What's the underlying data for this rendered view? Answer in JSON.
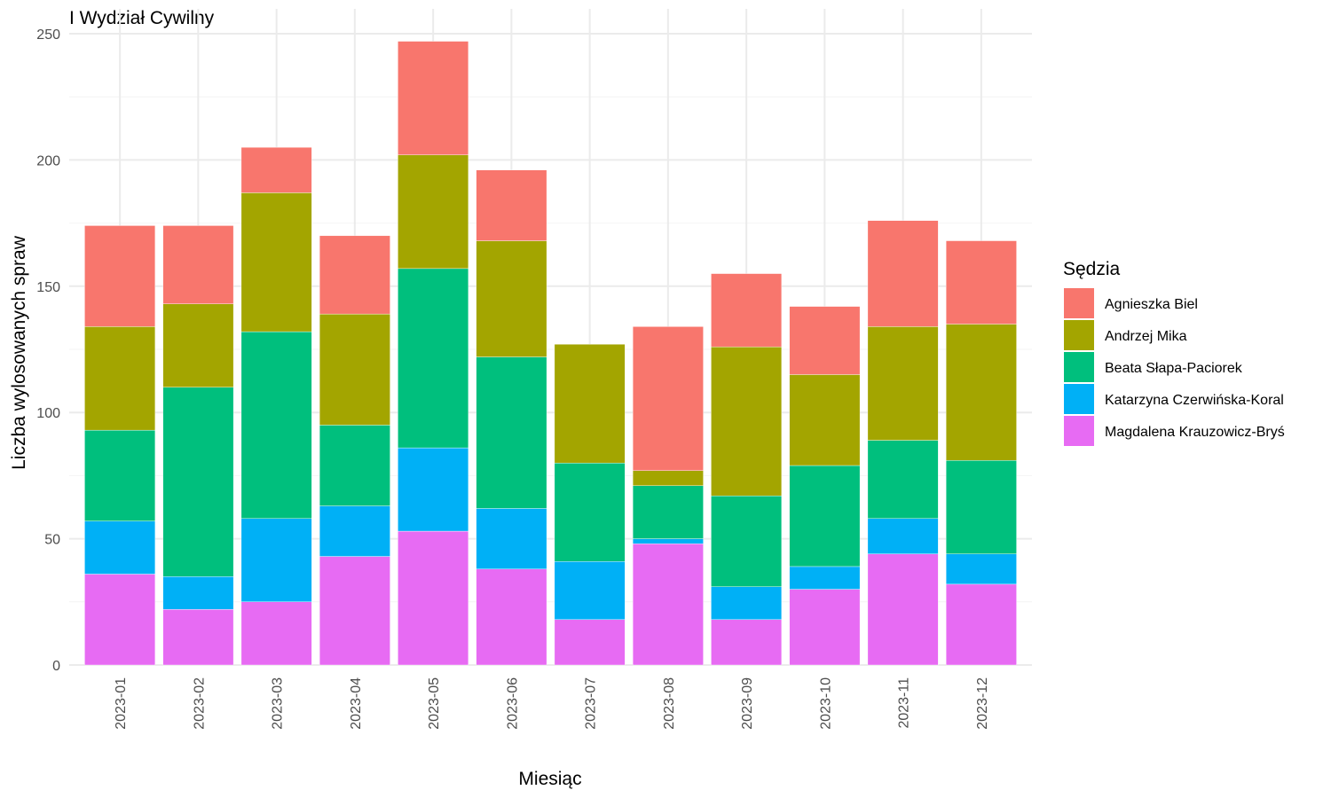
{
  "chart_data": {
    "type": "bar",
    "stacked": true,
    "title": "I Wydział Cywilny",
    "xlabel": "Miesiąc",
    "ylabel": "Liczba wylosowanych spraw",
    "ylim": [
      0,
      260
    ],
    "yticks": [
      0,
      50,
      100,
      150,
      200,
      250
    ],
    "grid": true,
    "legend": {
      "title": "Sędzia",
      "position": "right"
    },
    "categories": [
      "2023-01",
      "2023-02",
      "2023-03",
      "2023-04",
      "2023-05",
      "2023-06",
      "2023-07",
      "2023-08",
      "2023-09",
      "2023-10",
      "2023-11",
      "2023-12"
    ],
    "series": [
      {
        "name": "Magdalena Krauzowicz-Bryś",
        "color": "#E76BF3",
        "values": [
          36,
          22,
          25,
          43,
          53,
          38,
          18,
          48,
          18,
          30,
          44,
          32
        ]
      },
      {
        "name": "Katarzyna Czerwińska-Koral",
        "color": "#00B0F6",
        "values": [
          21,
          13,
          33,
          20,
          33,
          24,
          23,
          2,
          13,
          9,
          14,
          12
        ]
      },
      {
        "name": "Beata Słapa-Paciorek",
        "color": "#00BF7D",
        "values": [
          36,
          75,
          74,
          32,
          71,
          60,
          39,
          21,
          36,
          40,
          31,
          37
        ]
      },
      {
        "name": "Andrzej Mika",
        "color": "#A3A500",
        "values": [
          41,
          33,
          55,
          44,
          45,
          46,
          47,
          6,
          59,
          36,
          45,
          54
        ]
      },
      {
        "name": "Agnieszka Biel",
        "color": "#F8766D",
        "values": [
          40,
          31,
          18,
          31,
          45,
          28,
          0,
          57,
          29,
          27,
          42,
          33
        ]
      }
    ],
    "legend_order": [
      "Agnieszka Biel",
      "Andrzej Mika",
      "Beata Słapa-Paciorek",
      "Katarzyna Czerwińska-Koral",
      "Magdalena Krauzowicz-Bryś"
    ]
  }
}
